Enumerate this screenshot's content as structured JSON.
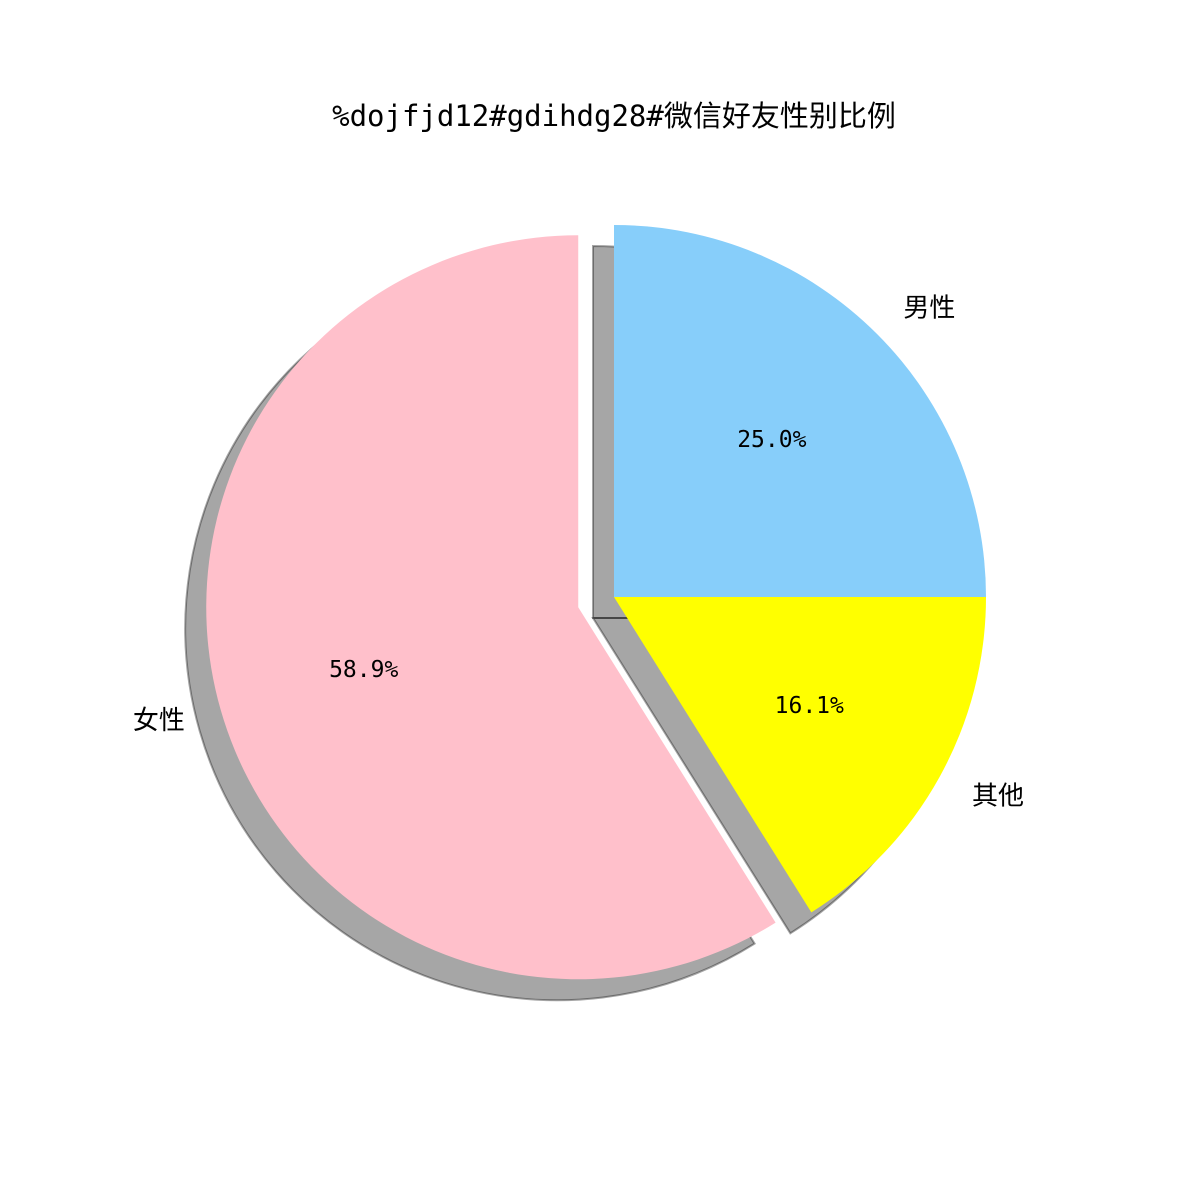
{
  "chart_data": {
    "type": "pie",
    "title": "%dojfjd12#gdihdg28#微信好友性别比例",
    "categories": [
      "男性",
      "其他",
      "女性"
    ],
    "values": [
      25.0,
      16.1,
      58.9
    ],
    "value_labels": [
      "25.0%",
      "16.1%",
      "58.9%"
    ],
    "colors": [
      "#87CEFA",
      "#FFFF00",
      "#FFC0CB"
    ],
    "explode": [
      0,
      0,
      0.1
    ],
    "start_angle_deg": 90,
    "shadow": true,
    "legend": "none"
  }
}
